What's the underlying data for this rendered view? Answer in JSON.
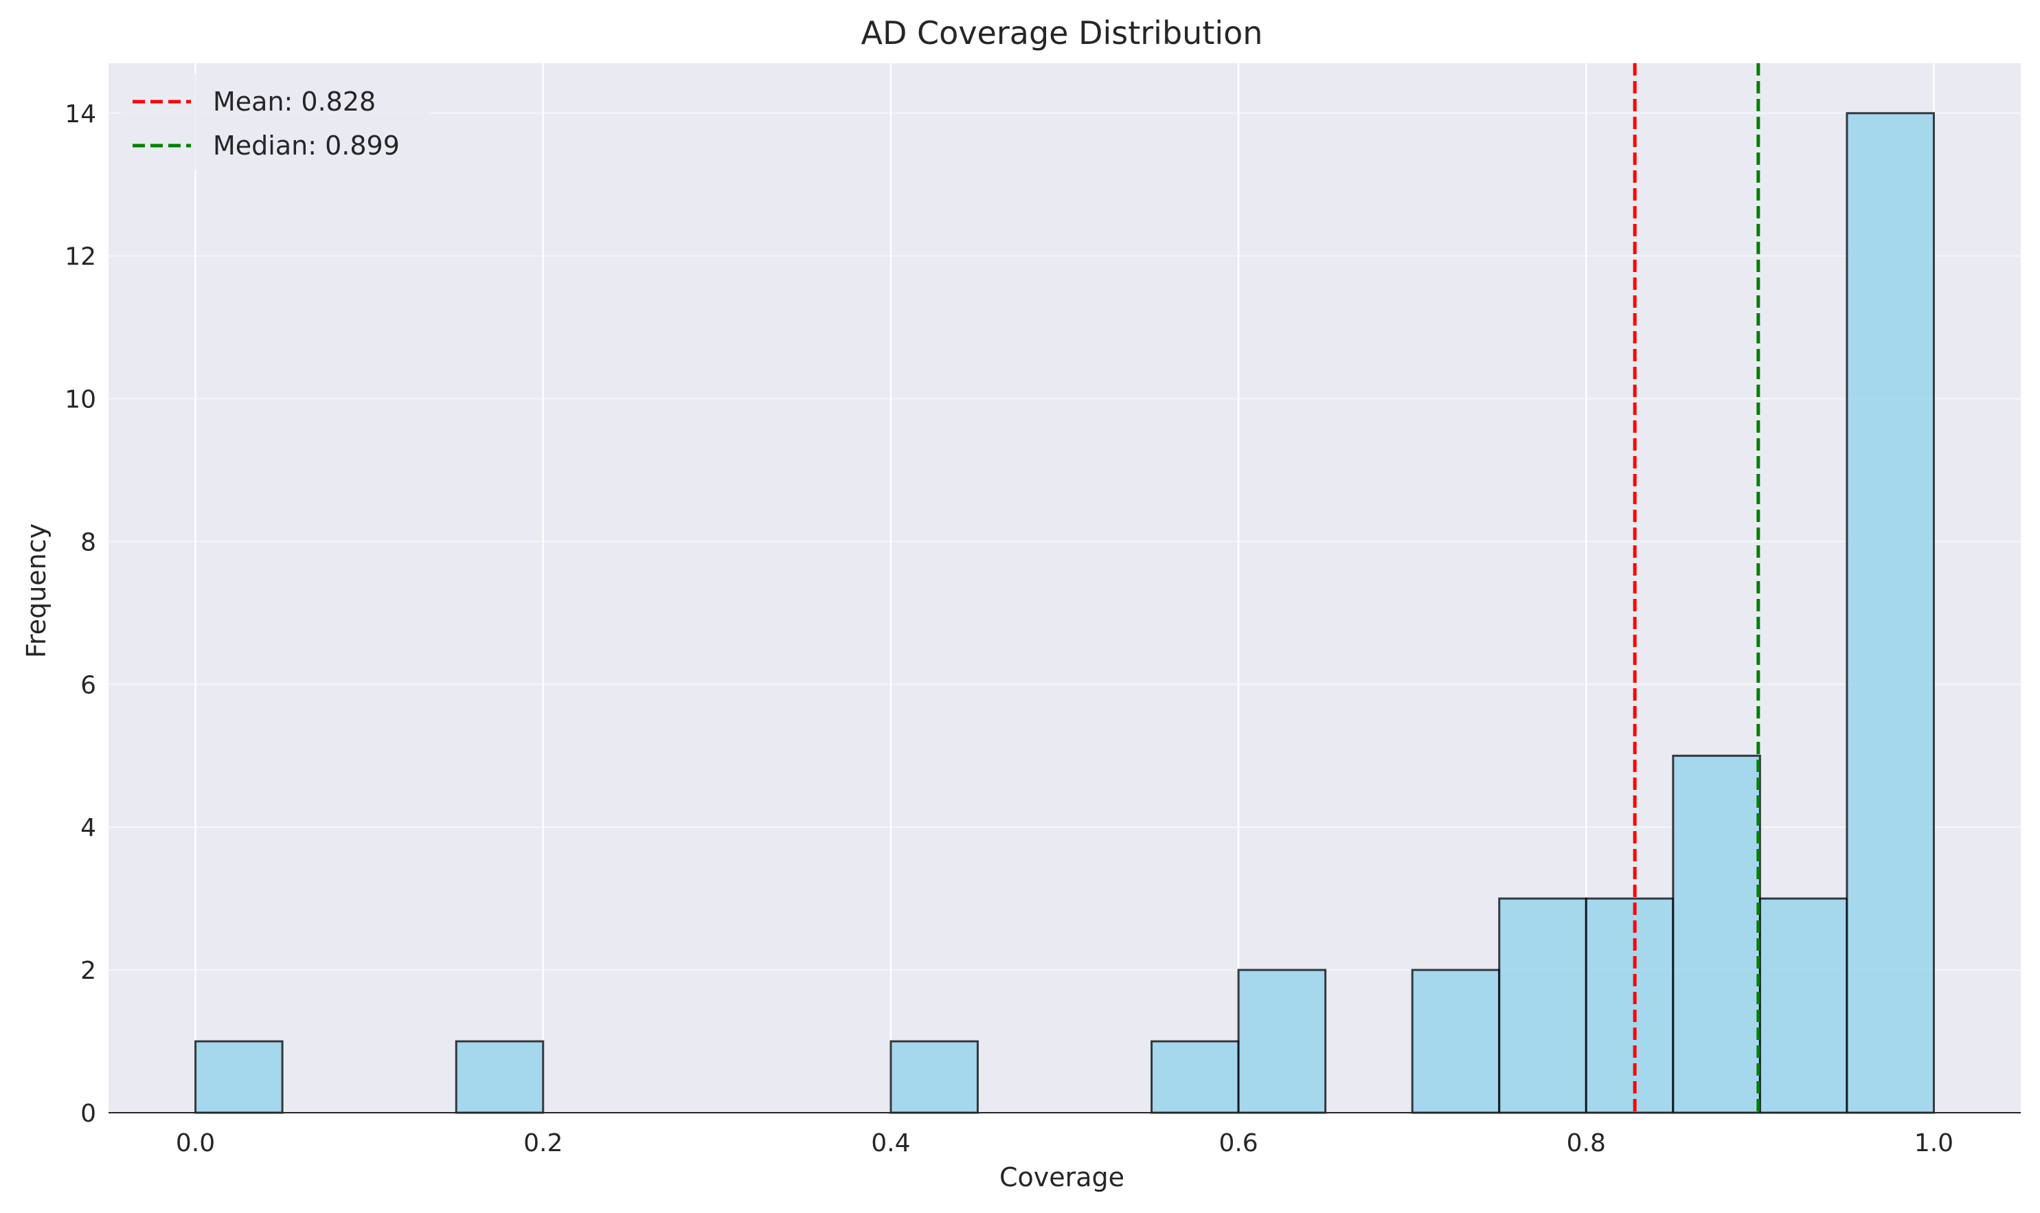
{
  "chart_data": {
    "type": "bar",
    "title": "AD Coverage Distribution",
    "xlabel": "Coverage",
    "ylabel": "Frequency",
    "xlim": [
      -0.05,
      1.05
    ],
    "ylim": [
      0,
      14.7
    ],
    "xticks": [
      0.0,
      0.2,
      0.4,
      0.6,
      0.8,
      1.0
    ],
    "xtick_labels": [
      "0.0",
      "0.2",
      "0.4",
      "0.6",
      "0.8",
      "1.0"
    ],
    "yticks": [
      0,
      2,
      4,
      6,
      8,
      10,
      12,
      14
    ],
    "ytick_labels": [
      "0",
      "2",
      "4",
      "6",
      "8",
      "10",
      "12",
      "14"
    ],
    "grid": true,
    "legend_position": "top-left",
    "bin_edges": [
      0.0,
      0.05,
      0.1,
      0.15,
      0.2,
      0.25,
      0.3,
      0.35,
      0.4,
      0.45,
      0.5,
      0.55,
      0.6,
      0.65,
      0.7,
      0.75,
      0.8,
      0.85,
      0.9,
      0.95,
      1.0
    ],
    "counts": [
      1,
      0,
      0,
      1,
      0,
      0,
      0,
      0,
      1,
      0,
      0,
      1,
      2,
      0,
      2,
      3,
      3,
      5,
      3,
      14
    ],
    "bar_color": "#87CEEB",
    "edge_color": "#000000",
    "lines": [
      {
        "label": "Mean: 0.828",
        "x": 0.828,
        "color": "#FF0000",
        "style": "dashed"
      },
      {
        "label": "Median: 0.899",
        "x": 0.899,
        "color": "#008000",
        "style": "dashed"
      }
    ]
  }
}
